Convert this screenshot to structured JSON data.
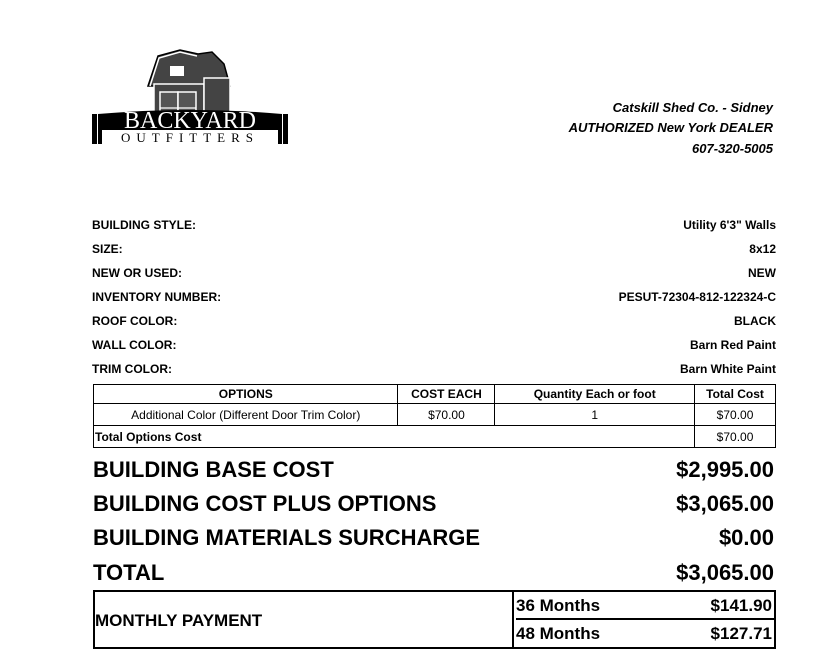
{
  "logo": {
    "line1": "BACKYARD",
    "line2": "OUTFITTERS"
  },
  "dealer": {
    "name": "Catskill Shed Co. - Sidney",
    "authorized": "AUTHORIZED New York DEALER",
    "phone": "607-320-5005"
  },
  "details": [
    {
      "label": "BUILDING STYLE:",
      "value": "Utility 6'3\" Walls"
    },
    {
      "label": "SIZE:",
      "value": "8x12"
    },
    {
      "label": "NEW OR USED:",
      "value": "NEW"
    },
    {
      "label": "INVENTORY NUMBER:",
      "value": "PESUT-72304-812-122324-C"
    },
    {
      "label": "ROOF COLOR:",
      "value": "BLACK"
    },
    {
      "label": "WALL COLOR:",
      "value": "Barn Red Paint"
    },
    {
      "label": "TRIM COLOR:",
      "value": "Barn White Paint"
    }
  ],
  "options": {
    "headers": [
      "OPTIONS",
      "COST EACH",
      "Quantity Each or foot",
      "Total Cost"
    ],
    "rows": [
      [
        "Additional Color (Different Door Trim Color)",
        "$70.00",
        "1",
        "$70.00"
      ]
    ],
    "total_label": "Total Options Cost",
    "total_value": "$70.00"
  },
  "costs": [
    {
      "label": "BUILDING BASE COST",
      "value": "$2,995.00"
    },
    {
      "label": "BUILDING COST PLUS OPTIONS",
      "value": "$3,065.00"
    },
    {
      "label": "BUILDING MATERIALS SURCHARGE",
      "value": "$0.00"
    },
    {
      "label": "TOTAL",
      "value": "$3,065.00"
    }
  ],
  "monthly": {
    "label": "MONTHLY PAYMENT",
    "plans": [
      {
        "term": "36 Months",
        "amount": "$141.90"
      },
      {
        "term": "48 Months",
        "amount": "$127.71"
      }
    ]
  }
}
